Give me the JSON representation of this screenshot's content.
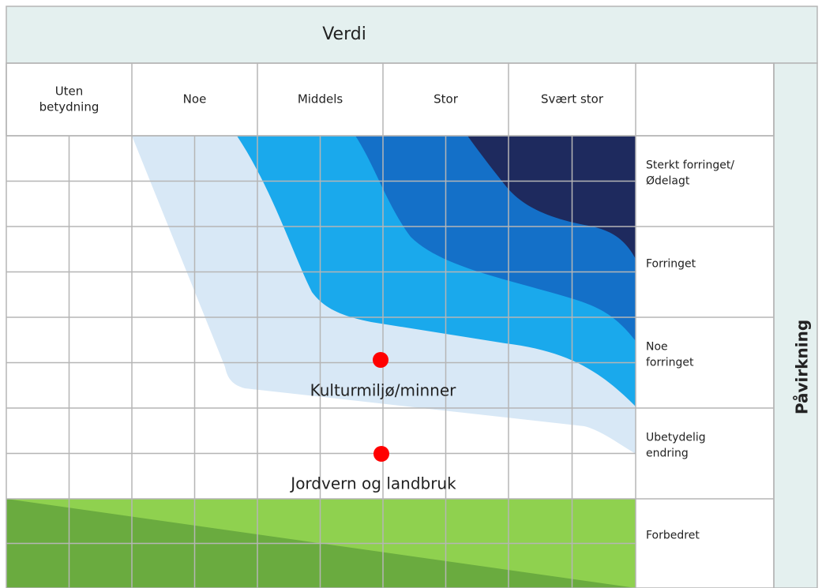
{
  "header": {
    "title": "Verdi"
  },
  "columns": [
    [
      "Uten",
      "betydning"
    ],
    [
      "Noe"
    ],
    [
      "Middels"
    ],
    [
      "Stor"
    ],
    [
      "Svært stor"
    ]
  ],
  "rows": [
    [
      "Sterkt forringet/",
      "Ødelagt"
    ],
    [
      "Forringet"
    ],
    [
      "Noe",
      "forringet"
    ],
    [
      "Ubetydelig",
      "endring"
    ],
    [
      "Forbedret"
    ]
  ],
  "side_label": "Påvirkning",
  "points": [
    {
      "label": "Kulturmiljø/minner"
    },
    {
      "label": "Jordvern og landbruk"
    }
  ]
}
